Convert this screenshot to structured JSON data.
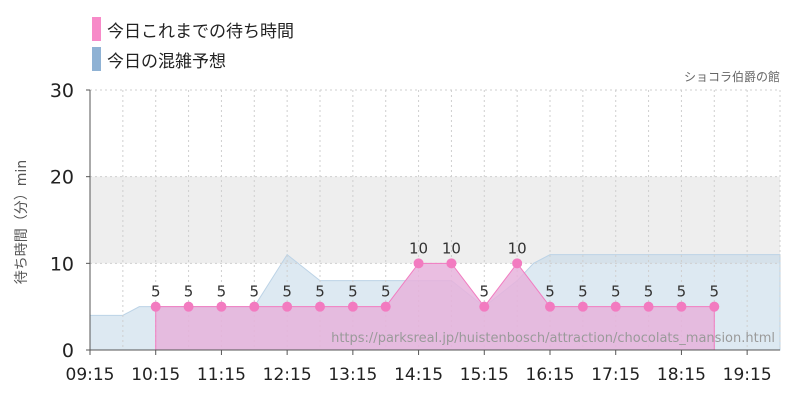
{
  "legend": {
    "actual_label": "今日これまでの待ち時間",
    "forecast_label": "今日の混雑予想"
  },
  "attraction_name": "ショコラ伯爵の館",
  "watermark": "https://parksreal.jp/huistenbosch/attraction/chocolats_mansion.html",
  "chart_data": {
    "type": "area",
    "title": "",
    "subtitle": "ショコラ伯爵の館",
    "xlabel": "",
    "ylabel": "待ち時間（分）min",
    "x_ticks": [
      "09:15",
      "10:15",
      "11:15",
      "12:15",
      "13:15",
      "14:15",
      "15:15",
      "16:15",
      "17:15",
      "18:15",
      "19:15"
    ],
    "xlim": [
      "09:15",
      "19:45"
    ],
    "ylim": [
      0,
      30
    ],
    "y_ticks": [
      0,
      10,
      20,
      30
    ],
    "band": [
      10,
      20
    ],
    "grid": true,
    "legend_position": "top-left",
    "colors": {
      "actual": "#f27bc0",
      "actual_fill": "#e6b3dc",
      "forecast": "#bcd3e6",
      "forecast_legend": "#8fb2d4",
      "band": "#eeeeee"
    },
    "series": [
      {
        "name": "今日これまでの待ち時間",
        "x": [
          "10:15",
          "10:45",
          "11:15",
          "11:45",
          "12:15",
          "12:45",
          "13:15",
          "13:45",
          "14:15",
          "14:45",
          "15:15",
          "15:45",
          "16:15",
          "16:45",
          "17:15",
          "17:45",
          "18:15",
          "18:45"
        ],
        "values": [
          5,
          5,
          5,
          5,
          5,
          5,
          5,
          5,
          10,
          10,
          5,
          10,
          5,
          5,
          5,
          5,
          5,
          5
        ]
      },
      {
        "name": "今日の混雑予想",
        "x": [
          "09:15",
          "09:45",
          "10:00",
          "10:15",
          "10:45",
          "11:15",
          "11:45",
          "12:00",
          "12:15",
          "12:45",
          "13:15",
          "13:45",
          "14:15",
          "14:45",
          "15:15",
          "15:45",
          "16:00",
          "16:15",
          "16:45",
          "17:15",
          "17:45",
          "18:15",
          "18:45",
          "19:15",
          "19:45"
        ],
        "values": [
          4,
          4,
          5,
          5,
          5,
          5,
          5,
          8,
          11,
          8,
          8,
          8,
          8,
          8,
          5,
          8,
          10,
          11,
          11,
          11,
          11,
          11,
          11,
          11,
          11
        ]
      }
    ]
  }
}
